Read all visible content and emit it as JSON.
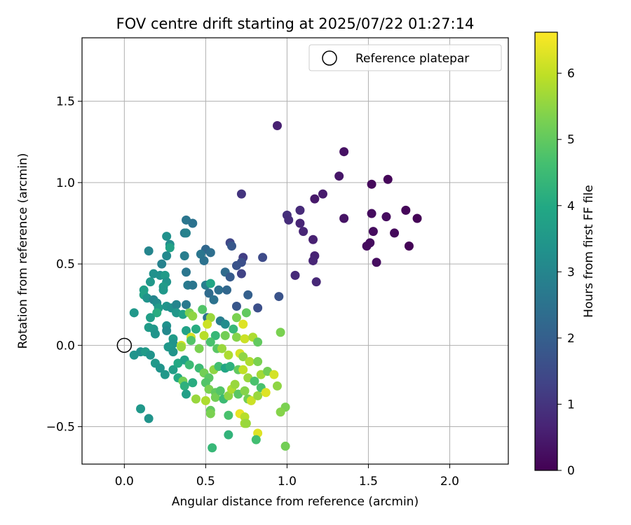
{
  "chart_data": {
    "type": "scatter",
    "title": "FOV centre drift starting at 2025/07/22 01:27:14",
    "xlabel": "Angular distance from reference (arcmin)",
    "ylabel": "Rotation from reference (arcmin)",
    "xlim": [
      -0.26,
      2.36
    ],
    "ylim": [
      -0.73,
      1.89
    ],
    "xticks": [
      0.0,
      0.5,
      1.0,
      1.5,
      2.0
    ],
    "xtick_labels": [
      "0.0",
      "0.5",
      "1.0",
      "1.5",
      "2.0"
    ],
    "yticks": [
      -0.5,
      0.0,
      0.5,
      1.0,
      1.5
    ],
    "ytick_labels": [
      "−0.5",
      "0.0",
      "0.5",
      "1.0",
      "1.5"
    ],
    "grid": true,
    "legend": {
      "placement": "top-right",
      "label": "Reference platepar"
    },
    "reference_point": {
      "x": 0.0,
      "y": 0.0
    },
    "colorbar": {
      "label": "Hours from first FF file",
      "range": [
        0,
        6.62
      ],
      "ticks": [
        0,
        1,
        2,
        3,
        4,
        5,
        6
      ],
      "tick_labels": [
        "0",
        "1",
        "2",
        "3",
        "4",
        "5",
        "6"
      ],
      "colormap": "viridis"
    },
    "points": [
      {
        "x": 0.94,
        "y": 1.35,
        "t": 0.6
      },
      {
        "x": 1.35,
        "y": 1.19,
        "t": 0.3
      },
      {
        "x": 1.32,
        "y": 1.04,
        "t": 0.4
      },
      {
        "x": 1.52,
        "y": 0.99,
        "t": 0.15
      },
      {
        "x": 1.62,
        "y": 1.02,
        "t": 0.1
      },
      {
        "x": 1.22,
        "y": 0.93,
        "t": 0.5
      },
      {
        "x": 1.17,
        "y": 0.9,
        "t": 0.45
      },
      {
        "x": 0.72,
        "y": 0.93,
        "t": 1.0
      },
      {
        "x": 1.08,
        "y": 0.83,
        "t": 0.8
      },
      {
        "x": 1.0,
        "y": 0.8,
        "t": 0.9
      },
      {
        "x": 1.01,
        "y": 0.77,
        "t": 0.85
      },
      {
        "x": 1.08,
        "y": 0.75,
        "t": 0.7
      },
      {
        "x": 1.1,
        "y": 0.7,
        "t": 0.7
      },
      {
        "x": 1.35,
        "y": 0.78,
        "t": 0.35
      },
      {
        "x": 1.52,
        "y": 0.81,
        "t": 0.2
      },
      {
        "x": 1.61,
        "y": 0.79,
        "t": 0.2
      },
      {
        "x": 1.73,
        "y": 0.83,
        "t": 0.1
      },
      {
        "x": 1.8,
        "y": 0.78,
        "t": 0.05
      },
      {
        "x": 1.53,
        "y": 0.7,
        "t": 0.2
      },
      {
        "x": 1.66,
        "y": 0.69,
        "t": 0.15
      },
      {
        "x": 1.49,
        "y": 0.61,
        "t": 0.2
      },
      {
        "x": 1.51,
        "y": 0.63,
        "t": 0.2
      },
      {
        "x": 1.75,
        "y": 0.61,
        "t": 0.05
      },
      {
        "x": 1.55,
        "y": 0.51,
        "t": 0.25
      },
      {
        "x": 1.16,
        "y": 0.65,
        "t": 0.6
      },
      {
        "x": 1.17,
        "y": 0.55,
        "t": 0.65
      },
      {
        "x": 1.16,
        "y": 0.52,
        "t": 0.7
      },
      {
        "x": 1.05,
        "y": 0.43,
        "t": 0.8
      },
      {
        "x": 1.18,
        "y": 0.39,
        "t": 0.75
      },
      {
        "x": 0.85,
        "y": 0.54,
        "t": 1.5
      },
      {
        "x": 0.73,
        "y": 0.54,
        "t": 1.2
      },
      {
        "x": 0.65,
        "y": 0.63,
        "t": 1.4
      },
      {
        "x": 0.66,
        "y": 0.61,
        "t": 1.8
      },
      {
        "x": 0.72,
        "y": 0.51,
        "t": 1.6
      },
      {
        "x": 0.69,
        "y": 0.49,
        "t": 1.7
      },
      {
        "x": 0.72,
        "y": 0.44,
        "t": 1.3
      },
      {
        "x": 0.62,
        "y": 0.45,
        "t": 2.3
      },
      {
        "x": 0.65,
        "y": 0.42,
        "t": 1.9
      },
      {
        "x": 0.58,
        "y": 0.34,
        "t": 2.4
      },
      {
        "x": 0.63,
        "y": 0.34,
        "t": 2.2
      },
      {
        "x": 0.76,
        "y": 0.31,
        "t": 2.0
      },
      {
        "x": 0.69,
        "y": 0.24,
        "t": 1.8
      },
      {
        "x": 0.82,
        "y": 0.23,
        "t": 1.6
      },
      {
        "x": 0.95,
        "y": 0.3,
        "t": 1.7
      },
      {
        "x": 0.5,
        "y": 0.59,
        "t": 2.2
      },
      {
        "x": 0.47,
        "y": 0.56,
        "t": 2.6
      },
      {
        "x": 0.53,
        "y": 0.57,
        "t": 2.4
      },
      {
        "x": 0.49,
        "y": 0.52,
        "t": 2.5
      },
      {
        "x": 0.38,
        "y": 0.77,
        "t": 2.6
      },
      {
        "x": 0.42,
        "y": 0.75,
        "t": 2.5
      },
      {
        "x": 0.37,
        "y": 0.69,
        "t": 2.7
      },
      {
        "x": 0.38,
        "y": 0.69,
        "t": 2.9
      },
      {
        "x": 0.26,
        "y": 0.67,
        "t": 3.3
      },
      {
        "x": 0.28,
        "y": 0.62,
        "t": 3.2
      },
      {
        "x": 0.28,
        "y": 0.6,
        "t": 3.8
      },
      {
        "x": 0.26,
        "y": 0.55,
        "t": 3.1
      },
      {
        "x": 0.37,
        "y": 0.55,
        "t": 2.8
      },
      {
        "x": 0.15,
        "y": 0.58,
        "t": 3.0
      },
      {
        "x": 0.23,
        "y": 0.5,
        "t": 2.9
      },
      {
        "x": 0.38,
        "y": 0.45,
        "t": 2.6
      },
      {
        "x": 0.18,
        "y": 0.44,
        "t": 3.3
      },
      {
        "x": 0.22,
        "y": 0.43,
        "t": 3.3
      },
      {
        "x": 0.25,
        "y": 0.43,
        "t": 3.6
      },
      {
        "x": 0.26,
        "y": 0.39,
        "t": 3.4
      },
      {
        "x": 0.16,
        "y": 0.39,
        "t": 3.5
      },
      {
        "x": 0.24,
        "y": 0.36,
        "t": 3.6
      },
      {
        "x": 0.24,
        "y": 0.34,
        "t": 3.5
      },
      {
        "x": 0.12,
        "y": 0.34,
        "t": 3.7
      },
      {
        "x": 0.12,
        "y": 0.31,
        "t": 3.8
      },
      {
        "x": 0.39,
        "y": 0.37,
        "t": 2.7
      },
      {
        "x": 0.42,
        "y": 0.37,
        "t": 2.6
      },
      {
        "x": 0.5,
        "y": 0.37,
        "t": 2.8
      },
      {
        "x": 0.53,
        "y": 0.38,
        "t": 3.9
      },
      {
        "x": 0.52,
        "y": 0.32,
        "t": 2.3
      },
      {
        "x": 0.55,
        "y": 0.28,
        "t": 2.5
      },
      {
        "x": 0.14,
        "y": 0.29,
        "t": 3.4
      },
      {
        "x": 0.18,
        "y": 0.28,
        "t": 3.0
      },
      {
        "x": 0.2,
        "y": 0.26,
        "t": 3.2
      },
      {
        "x": 0.21,
        "y": 0.23,
        "t": 3.6
      },
      {
        "x": 0.26,
        "y": 0.24,
        "t": 3.4
      },
      {
        "x": 0.29,
        "y": 0.23,
        "t": 3.3
      },
      {
        "x": 0.32,
        "y": 0.25,
        "t": 3.0
      },
      {
        "x": 0.38,
        "y": 0.25,
        "t": 2.7
      },
      {
        "x": 0.32,
        "y": 0.2,
        "t": 3.5
      },
      {
        "x": 0.36,
        "y": 0.19,
        "t": 3.8
      },
      {
        "x": 0.06,
        "y": 0.2,
        "t": 3.5
      },
      {
        "x": 0.2,
        "y": 0.2,
        "t": 4.1
      },
      {
        "x": 0.4,
        "y": 0.2,
        "t": 5.3
      },
      {
        "x": 0.42,
        "y": 0.18,
        "t": 5.5
      },
      {
        "x": 0.48,
        "y": 0.22,
        "t": 4.8
      },
      {
        "x": 0.51,
        "y": 0.17,
        "t": 2.5
      },
      {
        "x": 0.53,
        "y": 0.17,
        "t": 5.6
      },
      {
        "x": 0.59,
        "y": 0.15,
        "t": 2.8
      },
      {
        "x": 0.62,
        "y": 0.13,
        "t": 3.2
      },
      {
        "x": 0.67,
        "y": 0.1,
        "t": 4.4
      },
      {
        "x": 0.73,
        "y": 0.13,
        "t": 6.3
      },
      {
        "x": 0.75,
        "y": 0.2,
        "t": 5.0
      },
      {
        "x": 0.69,
        "y": 0.17,
        "t": 5.3
      },
      {
        "x": 0.16,
        "y": 0.17,
        "t": 3.7
      },
      {
        "x": 0.15,
        "y": 0.11,
        "t": 3.6
      },
      {
        "x": 0.18,
        "y": 0.1,
        "t": 3.5
      },
      {
        "x": 0.19,
        "y": 0.07,
        "t": 3.4
      },
      {
        "x": 0.26,
        "y": 0.12,
        "t": 3.3
      },
      {
        "x": 0.26,
        "y": 0.09,
        "t": 3.1
      },
      {
        "x": 0.3,
        "y": 0.04,
        "t": 3.6
      },
      {
        "x": 0.3,
        "y": 0.01,
        "t": 3.4
      },
      {
        "x": 0.38,
        "y": 0.09,
        "t": 3.8
      },
      {
        "x": 0.44,
        "y": 0.1,
        "t": 4.1
      },
      {
        "x": 0.51,
        "y": 0.13,
        "t": 6.1
      },
      {
        "x": 0.49,
        "y": 0.06,
        "t": 5.9
      },
      {
        "x": 0.56,
        "y": 0.06,
        "t": 4.4
      },
      {
        "x": 0.62,
        "y": 0.06,
        "t": 5.2
      },
      {
        "x": 0.69,
        "y": 0.05,
        "t": 5.4
      },
      {
        "x": 0.74,
        "y": 0.04,
        "t": 6.1
      },
      {
        "x": 0.79,
        "y": 0.05,
        "t": 5.8
      },
      {
        "x": 0.82,
        "y": 0.02,
        "t": 5.0
      },
      {
        "x": 0.96,
        "y": 0.08,
        "t": 5.3
      },
      {
        "x": 0.27,
        "y": -0.01,
        "t": 3.5
      },
      {
        "x": 0.3,
        "y": -0.04,
        "t": 3.4
      },
      {
        "x": 0.35,
        "y": -0.0,
        "t": 6.2
      },
      {
        "x": 0.35,
        "y": -0.01,
        "t": 5.6
      },
      {
        "x": 0.41,
        "y": 0.05,
        "t": 6.2
      },
      {
        "x": 0.41,
        "y": 0.03,
        "t": 4.8
      },
      {
        "x": 0.46,
        "y": -0.02,
        "t": 5.3
      },
      {
        "x": 0.53,
        "y": 0.02,
        "t": 4.7
      },
      {
        "x": 0.57,
        "y": -0.02,
        "t": 4.9
      },
      {
        "x": 0.6,
        "y": -0.02,
        "t": 5.6
      },
      {
        "x": 0.64,
        "y": -0.06,
        "t": 5.8
      },
      {
        "x": 0.71,
        "y": -0.05,
        "t": 6.2
      },
      {
        "x": 0.73,
        "y": -0.07,
        "t": 5.5
      },
      {
        "x": 0.77,
        "y": -0.1,
        "t": 5.8
      },
      {
        "x": 0.82,
        "y": -0.1,
        "t": 5.3
      },
      {
        "x": 0.06,
        "y": -0.06,
        "t": 3.4
      },
      {
        "x": 0.1,
        "y": -0.04,
        "t": 3.3
      },
      {
        "x": 0.13,
        "y": -0.04,
        "t": 3.6
      },
      {
        "x": 0.16,
        "y": -0.06,
        "t": 3.4
      },
      {
        "x": 0.19,
        "y": -0.11,
        "t": 3.5
      },
      {
        "x": 0.22,
        "y": -0.14,
        "t": 3.4
      },
      {
        "x": 0.25,
        "y": -0.18,
        "t": 3.5
      },
      {
        "x": 0.3,
        "y": -0.15,
        "t": 3.7
      },
      {
        "x": 0.33,
        "y": -0.11,
        "t": 4.0
      },
      {
        "x": 0.37,
        "y": -0.09,
        "t": 3.8
      },
      {
        "x": 0.4,
        "y": -0.12,
        "t": 4.5
      },
      {
        "x": 0.46,
        "y": -0.14,
        "t": 4.5
      },
      {
        "x": 0.49,
        "y": -0.17,
        "t": 5.2
      },
      {
        "x": 0.52,
        "y": -0.2,
        "t": 4.9
      },
      {
        "x": 0.55,
        "y": -0.15,
        "t": 5.5
      },
      {
        "x": 0.58,
        "y": -0.13,
        "t": 4.6
      },
      {
        "x": 0.62,
        "y": -0.14,
        "t": 3.9
      },
      {
        "x": 0.65,
        "y": -0.13,
        "t": 4.2
      },
      {
        "x": 0.7,
        "y": -0.15,
        "t": 5.0
      },
      {
        "x": 0.73,
        "y": -0.15,
        "t": 6.0
      },
      {
        "x": 0.76,
        "y": -0.2,
        "t": 5.6
      },
      {
        "x": 0.8,
        "y": -0.22,
        "t": 4.7
      },
      {
        "x": 0.84,
        "y": -0.18,
        "t": 5.7
      },
      {
        "x": 0.88,
        "y": -0.16,
        "t": 5.2
      },
      {
        "x": 0.92,
        "y": -0.18,
        "t": 6.2
      },
      {
        "x": 0.94,
        "y": -0.25,
        "t": 5.5
      },
      {
        "x": 0.33,
        "y": -0.2,
        "t": 4.0
      },
      {
        "x": 0.36,
        "y": -0.22,
        "t": 5.2
      },
      {
        "x": 0.37,
        "y": -0.25,
        "t": 4.2
      },
      {
        "x": 0.38,
        "y": -0.3,
        "t": 3.7
      },
      {
        "x": 0.42,
        "y": -0.23,
        "t": 4.1
      },
      {
        "x": 0.44,
        "y": -0.33,
        "t": 5.6
      },
      {
        "x": 0.5,
        "y": -0.23,
        "t": 4.8
      },
      {
        "x": 0.52,
        "y": -0.27,
        "t": 5.3
      },
      {
        "x": 0.5,
        "y": -0.34,
        "t": 5.8
      },
      {
        "x": 0.56,
        "y": -0.29,
        "t": 5.0
      },
      {
        "x": 0.56,
        "y": -0.32,
        "t": 5.2
      },
      {
        "x": 0.59,
        "y": -0.28,
        "t": 4.8
      },
      {
        "x": 0.61,
        "y": -0.33,
        "t": 4.5
      },
      {
        "x": 0.64,
        "y": -0.31,
        "t": 5.5
      },
      {
        "x": 0.66,
        "y": -0.27,
        "t": 5.8
      },
      {
        "x": 0.68,
        "y": -0.24,
        "t": 5.6
      },
      {
        "x": 0.7,
        "y": -0.3,
        "t": 4.9
      },
      {
        "x": 0.74,
        "y": -0.28,
        "t": 5.4
      },
      {
        "x": 0.76,
        "y": -0.33,
        "t": 5.2
      },
      {
        "x": 0.78,
        "y": -0.34,
        "t": 6.1
      },
      {
        "x": 0.82,
        "y": -0.31,
        "t": 5.6
      },
      {
        "x": 0.84,
        "y": -0.26,
        "t": 4.7
      },
      {
        "x": 0.87,
        "y": -0.29,
        "t": 6.3
      },
      {
        "x": 0.99,
        "y": -0.38,
        "t": 5.3
      },
      {
        "x": 0.1,
        "y": -0.39,
        "t": 3.5
      },
      {
        "x": 0.15,
        "y": -0.45,
        "t": 3.4
      },
      {
        "x": 0.53,
        "y": -0.4,
        "t": 5.0
      },
      {
        "x": 0.53,
        "y": -0.42,
        "t": 5.3
      },
      {
        "x": 0.64,
        "y": -0.43,
        "t": 4.7
      },
      {
        "x": 0.71,
        "y": -0.42,
        "t": 6.4
      },
      {
        "x": 0.74,
        "y": -0.44,
        "t": 5.9
      },
      {
        "x": 0.74,
        "y": -0.48,
        "t": 5.7
      },
      {
        "x": 0.75,
        "y": -0.48,
        "t": 5.6
      },
      {
        "x": 0.82,
        "y": -0.54,
        "t": 6.3
      },
      {
        "x": 0.81,
        "y": -0.58,
        "t": 4.6
      },
      {
        "x": 0.96,
        "y": -0.41,
        "t": 5.4
      },
      {
        "x": 0.99,
        "y": -0.62,
        "t": 5.2
      },
      {
        "x": 0.64,
        "y": -0.55,
        "t": 4.3
      },
      {
        "x": 0.54,
        "y": -0.63,
        "t": 4.4
      }
    ]
  }
}
